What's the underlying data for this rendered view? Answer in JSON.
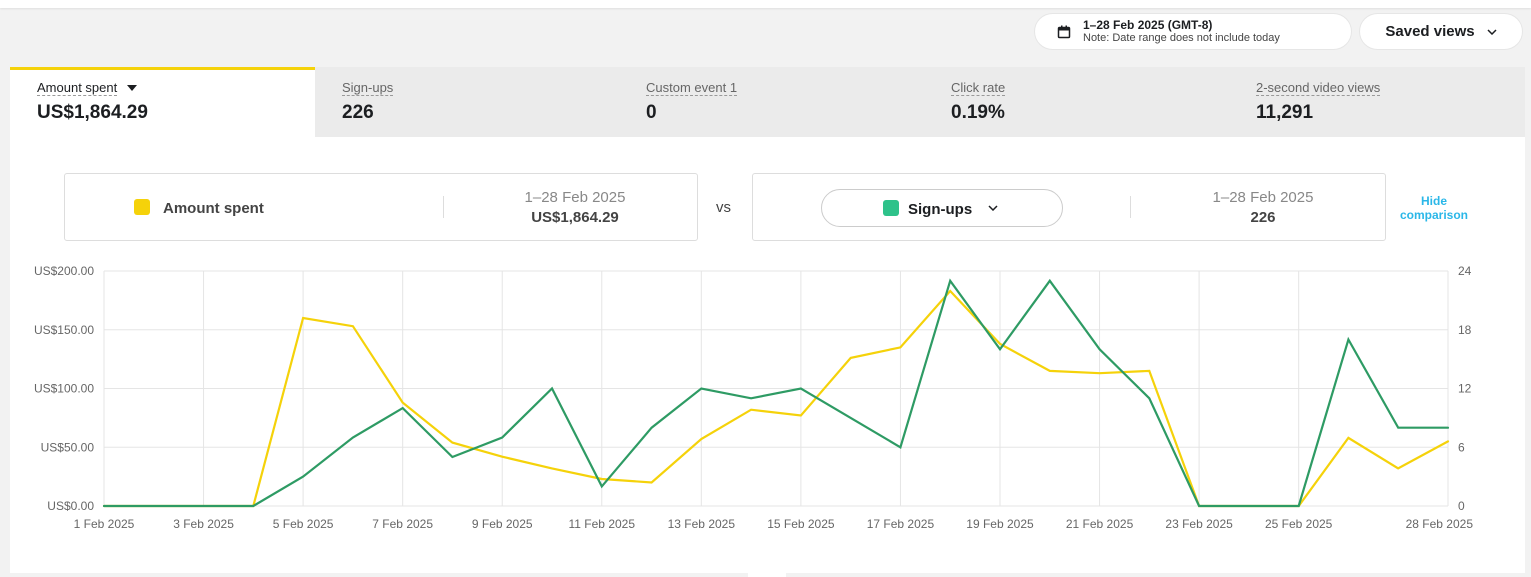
{
  "header": {
    "date_range": "1–28 Feb 2025 (GMT-8)",
    "date_note": "Note: Date range does not include today",
    "saved_views": "Saved views"
  },
  "tabs": [
    {
      "label": "Amount spent",
      "value": "US$1,864.29",
      "active": true
    },
    {
      "label": "Sign-ups",
      "value": "226"
    },
    {
      "label": "Custom event 1",
      "value": "0"
    },
    {
      "label": "Click rate",
      "value": "0.19%"
    },
    {
      "label": "2-second video views",
      "value": "11,291"
    }
  ],
  "comparison": {
    "left": {
      "metric": "Amount spent",
      "date": "1–28 Feb 2025",
      "value": "US$1,864.29",
      "color": "#f5d20a"
    },
    "vs": "vs",
    "right": {
      "metric": "Sign-ups",
      "date": "1–28 Feb 2025",
      "value": "226",
      "color": "#2ec28a"
    },
    "hide_line1": "Hide",
    "hide_line2": "comparison"
  },
  "chart_data": {
    "type": "line",
    "x": [
      "1 Feb 2025",
      "2 Feb 2025",
      "3 Feb 2025",
      "4 Feb 2025",
      "5 Feb 2025",
      "6 Feb 2025",
      "7 Feb 2025",
      "8 Feb 2025",
      "9 Feb 2025",
      "10 Feb 2025",
      "11 Feb 2025",
      "12 Feb 2025",
      "13 Feb 2025",
      "14 Feb 2025",
      "15 Feb 2025",
      "16 Feb 2025",
      "17 Feb 2025",
      "18 Feb 2025",
      "19 Feb 2025",
      "20 Feb 2025",
      "21 Feb 2025",
      "22 Feb 2025",
      "23 Feb 2025",
      "24 Feb 2025",
      "25 Feb 2025",
      "26 Feb 2025",
      "27 Feb 2025",
      "28 Feb 2025"
    ],
    "x_tick_labels": [
      "1 Feb 2025",
      "3 Feb 2025",
      "5 Feb 2025",
      "7 Feb 2025",
      "9 Feb 2025",
      "11 Feb 2025",
      "13 Feb 2025",
      "15 Feb 2025",
      "17 Feb 2025",
      "19 Feb 2025",
      "21 Feb 2025",
      "23 Feb 2025",
      "25 Feb 2025",
      "28 Feb 2025"
    ],
    "x_tick_index": [
      0,
      2,
      4,
      6,
      8,
      10,
      12,
      14,
      16,
      18,
      20,
      22,
      24,
      27
    ],
    "series": [
      {
        "name": "Amount spent",
        "axis": "left",
        "color": "#f5d20a",
        "values": [
          0,
          0,
          0,
          0,
          160,
          153,
          88,
          54,
          42,
          32,
          23,
          20,
          57,
          82,
          77,
          126,
          135,
          183,
          138,
          115,
          113,
          115,
          0,
          0,
          0,
          58,
          32,
          55
        ]
      },
      {
        "name": "Sign-ups",
        "axis": "right",
        "color": "#2e9b64",
        "values": [
          0,
          0,
          0,
          0,
          3,
          7,
          10,
          5,
          7,
          12,
          2,
          8,
          12,
          11,
          12,
          9,
          6,
          23,
          16,
          23,
          16,
          11,
          0,
          0,
          0,
          17,
          8,
          8
        ]
      }
    ],
    "y_left": {
      "ticks": [
        "US$0.00",
        "US$50.00",
        "US$100.00",
        "US$150.00",
        "US$200.00"
      ],
      "range": [
        0,
        200
      ]
    },
    "y_right": {
      "ticks": [
        "0",
        "6",
        "12",
        "18",
        "24"
      ],
      "range": [
        0,
        24
      ]
    },
    "grid": true
  }
}
